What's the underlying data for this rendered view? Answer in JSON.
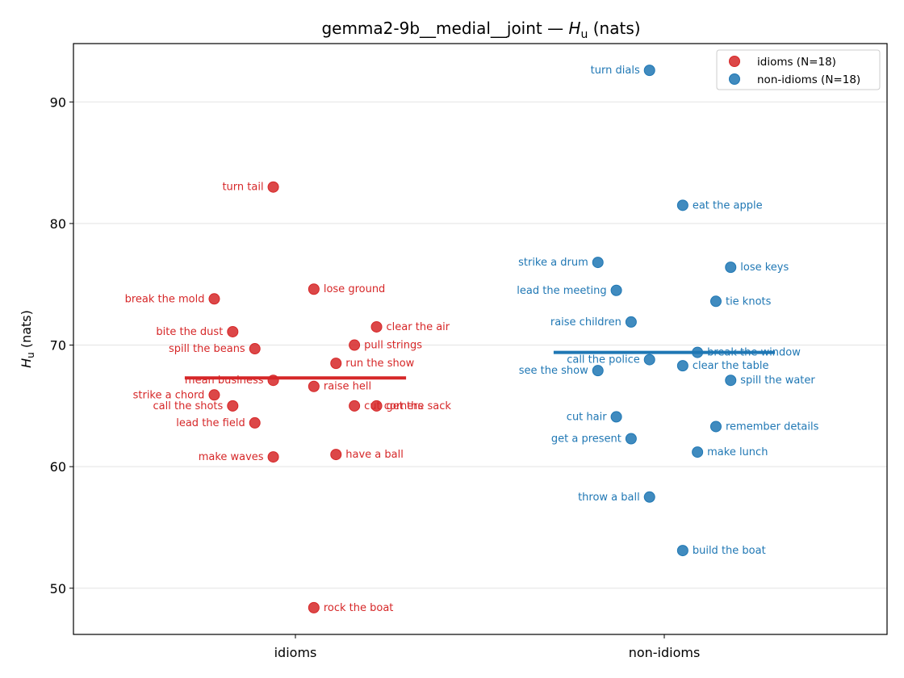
{
  "chart_data": {
    "type": "scatter",
    "title_text": "gemma2-9b__medial__joint — ",
    "title_var": "H",
    "title_sub": "u",
    "title_units": " (nats)",
    "ylabel_var": "H",
    "ylabel_sub": "u",
    "ylabel_units": " (nats)",
    "categories": [
      "idioms",
      "non-idioms"
    ],
    "ylim": [
      46.2,
      94.8
    ],
    "yticks": [
      50,
      60,
      70,
      80,
      90
    ],
    "grid": "y",
    "legend_position": "top-right",
    "series": [
      {
        "name": "idioms (N=18)",
        "color": "#d62728",
        "mean": 67.3,
        "points": [
          {
            "label": "turn tail",
            "x": -0.06,
            "y": 83.0
          },
          {
            "label": "break the mold",
            "x": -0.22,
            "y": 73.8
          },
          {
            "label": "lose ground",
            "x": 0.05,
            "y": 74.6
          },
          {
            "label": "bite the dust",
            "x": -0.17,
            "y": 71.1
          },
          {
            "label": "clear the air",
            "x": 0.22,
            "y": 71.5
          },
          {
            "label": "spill the beans",
            "x": -0.11,
            "y": 69.7
          },
          {
            "label": "pull strings",
            "x": 0.16,
            "y": 70.0
          },
          {
            "label": "run the show",
            "x": 0.11,
            "y": 68.5
          },
          {
            "label": "mean business",
            "x": -0.06,
            "y": 67.1
          },
          {
            "label": "raise hell",
            "x": 0.05,
            "y": 66.6
          },
          {
            "label": "strike a chord",
            "x": -0.22,
            "y": 65.9
          },
          {
            "label": "call the shots",
            "x": -0.17,
            "y": 65.0
          },
          {
            "label": "cut corners",
            "x": 0.16,
            "y": 65.0
          },
          {
            "label": "get the sack",
            "x": 0.22,
            "y": 65.0
          },
          {
            "label": "lead the field",
            "x": -0.11,
            "y": 63.6
          },
          {
            "label": "make waves",
            "x": -0.06,
            "y": 60.8
          },
          {
            "label": "have a ball",
            "x": 0.11,
            "y": 61.0
          },
          {
            "label": "rock the boat",
            "x": 0.05,
            "y": 48.4
          }
        ]
      },
      {
        "name": "non-idioms (N=18)",
        "color": "#1f77b4",
        "mean": 69.4,
        "points": [
          {
            "label": "turn dials",
            "x": -0.04,
            "y": 92.6
          },
          {
            "label": "eat the apple",
            "x": 0.05,
            "y": 81.5
          },
          {
            "label": "strike a drum",
            "x": -0.18,
            "y": 76.8
          },
          {
            "label": "lose keys",
            "x": 0.18,
            "y": 76.4
          },
          {
            "label": "lead the meeting",
            "x": -0.13,
            "y": 74.5
          },
          {
            "label": "tie knots",
            "x": 0.14,
            "y": 73.6
          },
          {
            "label": "raise children",
            "x": -0.09,
            "y": 71.9
          },
          {
            "label": "break the window",
            "x": 0.09,
            "y": 69.4
          },
          {
            "label": "call the police",
            "x": -0.04,
            "y": 68.8
          },
          {
            "label": "clear the table",
            "x": 0.05,
            "y": 68.3
          },
          {
            "label": "see the show",
            "x": -0.18,
            "y": 67.9
          },
          {
            "label": "spill the water",
            "x": 0.18,
            "y": 67.1
          },
          {
            "label": "cut hair",
            "x": -0.13,
            "y": 64.1
          },
          {
            "label": "remember details",
            "x": 0.14,
            "y": 63.3
          },
          {
            "label": "get a present",
            "x": -0.09,
            "y": 62.3
          },
          {
            "label": "make lunch",
            "x": 0.09,
            "y": 61.2
          },
          {
            "label": "throw a ball",
            "x": -0.04,
            "y": 57.5
          },
          {
            "label": "build the boat",
            "x": 0.05,
            "y": 53.1
          }
        ]
      }
    ]
  }
}
